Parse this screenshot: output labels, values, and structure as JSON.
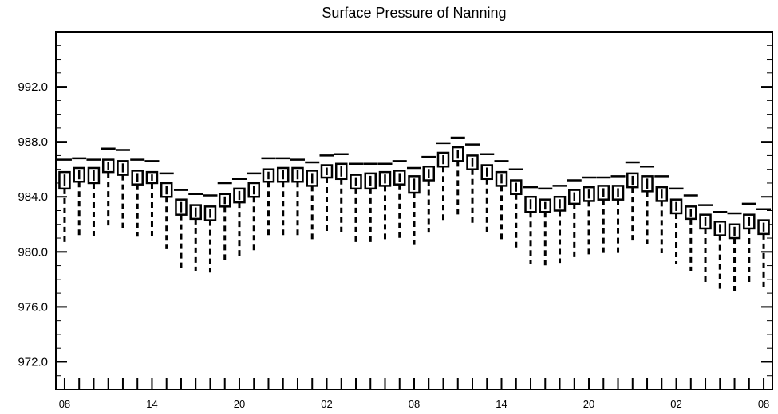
{
  "chart_data": {
    "type": "boxplot",
    "title": "Surface Pressure of Nanning",
    "xlabel": "",
    "ylabel": "",
    "ylim": [
      970.0,
      996.0
    ],
    "yticks": [
      "972.0",
      "976.0",
      "980.0",
      "984.0",
      "988.0",
      "992.0"
    ],
    "ytick_values": [
      972,
      976,
      980,
      984,
      988,
      992
    ],
    "xtick_labels": [
      "08",
      "14",
      "20",
      "02",
      "08",
      "14",
      "20",
      "02",
      "08"
    ],
    "xtick_hours": [
      0,
      6,
      12,
      18,
      24,
      30,
      36,
      42,
      48
    ],
    "x_hours": [
      0,
      1,
      2,
      3,
      4,
      5,
      6,
      7,
      8,
      9,
      10,
      11,
      12,
      13,
      14,
      15,
      16,
      17,
      18,
      19,
      20,
      21,
      22,
      23,
      24,
      25,
      26,
      27,
      28,
      29,
      30,
      31,
      32,
      33,
      34,
      35,
      36,
      37,
      38,
      39,
      40,
      41,
      42,
      43,
      44,
      45,
      46,
      47,
      48
    ],
    "q1": [
      984.6,
      985.1,
      985.0,
      985.8,
      985.6,
      984.9,
      985.0,
      984.0,
      982.7,
      982.4,
      982.3,
      983.3,
      983.6,
      984.0,
      985.1,
      985.1,
      985.1,
      984.8,
      985.4,
      985.3,
      984.6,
      984.6,
      984.8,
      984.9,
      984.3,
      985.2,
      986.2,
      986.6,
      986.0,
      985.3,
      984.8,
      984.2,
      982.9,
      982.9,
      983.0,
      983.5,
      983.7,
      983.8,
      983.8,
      984.7,
      984.4,
      983.7,
      982.8,
      982.4,
      981.7,
      981.2,
      981.0,
      981.7,
      981.3
    ],
    "median": [
      985.2,
      985.6,
      985.5,
      986.2,
      986.1,
      985.4,
      985.3,
      984.5,
      983.2,
      982.9,
      982.8,
      983.7,
      984.1,
      984.5,
      985.5,
      985.6,
      985.6,
      985.3,
      985.8,
      985.9,
      985.1,
      985.2,
      985.3,
      985.4,
      984.9,
      985.7,
      986.7,
      987.1,
      986.5,
      985.8,
      985.3,
      984.7,
      983.4,
      983.3,
      983.5,
      984.0,
      984.2,
      984.3,
      984.3,
      985.2,
      985.0,
      984.2,
      983.3,
      982.8,
      982.2,
      981.7,
      981.5,
      982.2,
      981.8
    ],
    "q3": [
      985.8,
      986.1,
      986.1,
      986.7,
      986.6,
      985.9,
      985.8,
      985.0,
      983.8,
      983.4,
      983.3,
      984.2,
      984.6,
      985.0,
      986.0,
      986.1,
      986.1,
      985.9,
      986.3,
      986.4,
      985.6,
      985.7,
      985.8,
      985.9,
      985.5,
      986.2,
      987.2,
      987.6,
      987.0,
      986.3,
      985.8,
      985.2,
      984.0,
      983.8,
      984.0,
      984.5,
      984.7,
      984.8,
      984.8,
      985.7,
      985.5,
      984.7,
      983.8,
      983.3,
      982.7,
      982.2,
      982.0,
      982.7,
      982.3
    ],
    "whisker_low": [
      980.6,
      981.1,
      981.1,
      981.8,
      981.7,
      981.1,
      981.0,
      980.2,
      978.8,
      978.6,
      978.5,
      979.2,
      979.6,
      979.9,
      981.2,
      981.2,
      981.0,
      980.7,
      981.4,
      981.2,
      980.6,
      980.6,
      980.7,
      980.9,
      980.5,
      981.4,
      982.1,
      982.6,
      982.1,
      981.4,
      980.9,
      980.3,
      979.1,
      979.0,
      979.2,
      979.6,
      979.7,
      979.8,
      979.8,
      980.7,
      980.6,
      979.9,
      979.1,
      978.6,
      977.8,
      977.2,
      977.1,
      977.8,
      977.4
    ],
    "whisker_high": [
      986.7,
      986.8,
      986.7,
      987.5,
      987.4,
      986.7,
      986.6,
      985.7,
      984.5,
      984.2,
      984.1,
      985.0,
      985.3,
      985.7,
      986.8,
      986.8,
      986.7,
      986.5,
      987.0,
      987.1,
      986.4,
      986.4,
      986.4,
      986.6,
      986.1,
      986.9,
      987.9,
      988.3,
      987.8,
      987.1,
      986.6,
      986.0,
      984.7,
      984.6,
      984.8,
      985.2,
      985.4,
      985.4,
      985.5,
      986.5,
      986.2,
      985.5,
      984.6,
      984.1,
      983.4,
      982.9,
      982.8,
      983.5,
      983.1
    ]
  }
}
